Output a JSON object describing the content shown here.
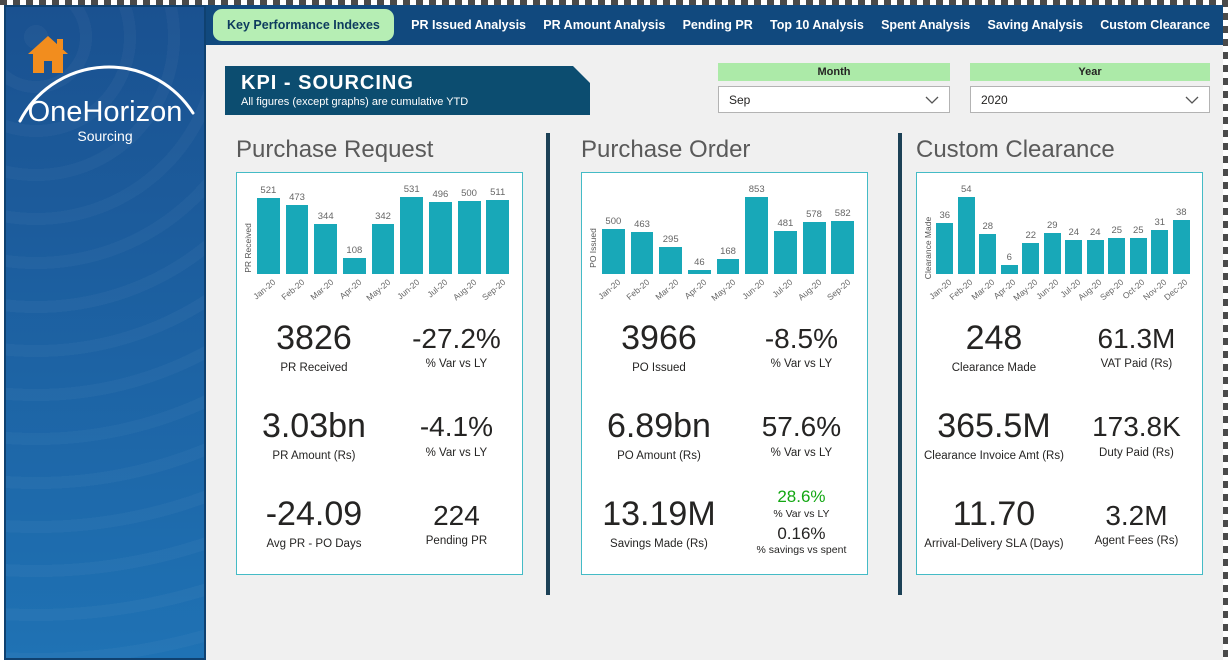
{
  "sidebar": {
    "logo_text": "OneHorizon",
    "logo_subtext": "Sourcing"
  },
  "nav": {
    "tabs": [
      {
        "label": "Key Performance Indexes",
        "active": true
      },
      {
        "label": "PR Issued Analysis",
        "active": false
      },
      {
        "label": "PR Amount Analysis",
        "active": false
      },
      {
        "label": "Pending PR",
        "active": false
      },
      {
        "label": "Top 10 Analysis",
        "active": false
      },
      {
        "label": "Spent Analysis",
        "active": false
      },
      {
        "label": "Saving Analysis",
        "active": false
      },
      {
        "label": "Custom Clearance",
        "active": false
      }
    ]
  },
  "header": {
    "title": "KPI - SOURCING",
    "subtitle": "All figures (except graphs) are cumulative YTD"
  },
  "filters": {
    "month": {
      "label": "Month",
      "value": "Sep"
    },
    "year": {
      "label": "Year",
      "value": "2020"
    }
  },
  "panels": [
    {
      "title": "Purchase Request",
      "kpis": [
        {
          "value": "3826",
          "label": "PR Received"
        },
        {
          "value": "-27.2%",
          "label": "% Var vs LY"
        },
        {
          "value": "3.03bn",
          "label": "PR Amount (Rs)"
        },
        {
          "value": "-4.1%",
          "label": "% Var vs LY"
        },
        {
          "value": "-24.09",
          "label": "Avg PR - PO Days"
        },
        {
          "value": "224",
          "label": "Pending PR"
        }
      ]
    },
    {
      "title": "Purchase Order",
      "kpis": [
        {
          "value": "3966",
          "label": "PO Issued"
        },
        {
          "value": "-8.5%",
          "label": "% Var vs LY"
        },
        {
          "value": "6.89bn",
          "label": "PO Amount (Rs)"
        },
        {
          "value": "57.6%",
          "label": "% Var vs LY"
        },
        {
          "value": "13.19M",
          "label": "Savings Made (Rs)"
        },
        {
          "stack": [
            {
              "value": "28.6%",
              "label": "% Var vs LY",
              "color": "#12a712"
            },
            {
              "value": "0.16%",
              "label": "% savings vs spent",
              "color": "#252423"
            }
          ]
        }
      ]
    },
    {
      "title": "Custom Clearance",
      "kpis": [
        {
          "value": "248",
          "label": "Clearance Made"
        },
        {
          "value": "61.3M",
          "label": "VAT Paid (Rs)"
        },
        {
          "value": "365.5M",
          "label": "Clearance Invoice Amt (Rs)"
        },
        {
          "value": "173.8K",
          "label": "Duty Paid (Rs)"
        },
        {
          "value": "11.70",
          "label": "Arrival-Delivery SLA (Days)"
        },
        {
          "value": "3.2M",
          "label": "Agent Fees (Rs)"
        }
      ]
    }
  ],
  "chart_data": [
    {
      "type": "bar",
      "title": "Purchase Request",
      "ylabel": "PR Received",
      "categories": [
        "Jan-20",
        "Feb-20",
        "Mar-20",
        "Apr-20",
        "May-20",
        "Jun-20",
        "Jul-20",
        "Aug-20",
        "Sep-20"
      ],
      "values": [
        521,
        473,
        344,
        108,
        342,
        531,
        496,
        500,
        511
      ],
      "bar_color": "#18a8b8",
      "grid": false,
      "data_labels": true
    },
    {
      "type": "bar",
      "title": "Purchase Order",
      "ylabel": "PO Issued",
      "categories": [
        "Jan-20",
        "Feb-20",
        "Mar-20",
        "Apr-20",
        "May-20",
        "Jun-20",
        "Jul-20",
        "Aug-20",
        "Sep-20"
      ],
      "values": [
        500,
        463,
        295,
        46,
        168,
        853,
        481,
        578,
        582
      ],
      "bar_color": "#18a8b8",
      "grid": false,
      "data_labels": true
    },
    {
      "type": "bar",
      "title": "Custom Clearance",
      "ylabel": "Clearance Made",
      "categories": [
        "Jan-20",
        "Feb-20",
        "Mar-20",
        "Apr-20",
        "May-20",
        "Jun-20",
        "Jul-20",
        "Aug-20",
        "Sep-20",
        "Oct-20",
        "Nov-20",
        "Dec-20"
      ],
      "values": [
        36,
        54,
        28,
        6,
        22,
        29,
        24,
        24,
        25,
        25,
        31,
        38
      ],
      "bar_color": "#18a8b8",
      "grid": false,
      "data_labels": true
    }
  ],
  "colors": {
    "accent_teal": "#18a8b8",
    "nav_blue": "#11497e",
    "active_tab_green": "#b6eeb4",
    "header_navy": "#0c4d70",
    "filter_green": "#aceaa8",
    "positive_green": "#12a712",
    "divider_navy": "#1c4156",
    "panel_border": "#44bbc6",
    "home_icon_orange": "#f28d1e"
  }
}
